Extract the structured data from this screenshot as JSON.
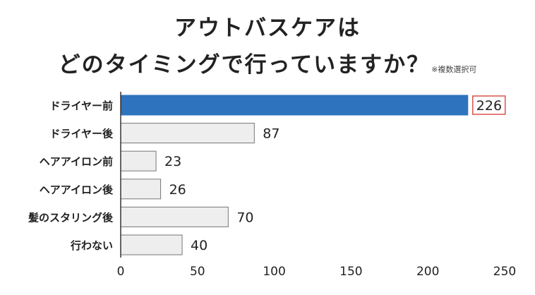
{
  "title": {
    "line1": "アウトバスケアは",
    "line2": "どのタイミングで行っていますか？",
    "note": "※複数選択可"
  },
  "colors": {
    "highlight_bar": "#2e73bd",
    "default_bar": "#eeeeee",
    "bar_border": "#777777",
    "highlight_label_border": "#d9534f"
  },
  "chart_data": {
    "type": "bar",
    "orientation": "horizontal",
    "categories": [
      "ドライヤー前",
      "ドライヤー後",
      "ヘアアイロン前",
      "ヘアアイロン後",
      "髪のスタリング後",
      "行わない"
    ],
    "values": [
      226,
      87,
      23,
      26,
      70,
      40
    ],
    "highlight_index": 0,
    "xlim": [
      0,
      250
    ],
    "xticks": [
      0,
      50,
      100,
      150,
      200,
      250
    ],
    "grid": false,
    "legend": "none"
  }
}
